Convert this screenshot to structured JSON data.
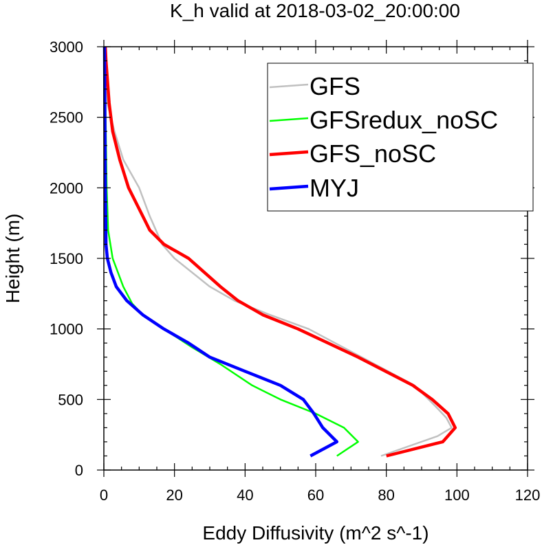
{
  "chart_data": {
    "type": "line",
    "title": "K_h valid at 2018-03-02_20:00:00",
    "xlabel": "Eddy Diffusivity (m^2 s^-1)",
    "ylabel": "Height (m)",
    "xlim": [
      0,
      120
    ],
    "ylim": [
      0,
      3000
    ],
    "xticks": [
      0,
      20,
      40,
      60,
      80,
      100,
      120
    ],
    "yticks": [
      0,
      500,
      1000,
      1500,
      2000,
      2500,
      3000
    ],
    "xtick_labels": [
      "0",
      "20",
      "40",
      "60",
      "80",
      "100",
      "120"
    ],
    "ytick_labels": [
      "0",
      "500",
      "1000",
      "1500",
      "2000",
      "2500",
      "3000"
    ],
    "legend_position": "top-right",
    "grid": false,
    "series": [
      {
        "name": "GFS",
        "color": "#c0c0c0",
        "line_width": "thin",
        "points": [
          [
            78.5,
            100
          ],
          [
            94.5,
            240
          ],
          [
            98.5,
            300
          ],
          [
            97,
            370
          ],
          [
            94,
            450
          ],
          [
            88,
            600
          ],
          [
            73,
            800
          ],
          [
            58,
            1000
          ],
          [
            47,
            1100
          ],
          [
            37,
            1200
          ],
          [
            30,
            1300
          ],
          [
            20,
            1500
          ],
          [
            16.5,
            1600
          ],
          [
            13,
            1800
          ],
          [
            10,
            2000
          ],
          [
            5.5,
            2200
          ],
          [
            3,
            2400
          ],
          [
            1,
            2600
          ],
          [
            0.5,
            2700
          ],
          [
            0.4,
            2800
          ],
          [
            0.3,
            3000
          ]
        ]
      },
      {
        "name": "GFSredux_noSC",
        "color": "#00ff00",
        "line_width": "thin",
        "points": [
          [
            66,
            100
          ],
          [
            72,
            200
          ],
          [
            68,
            300
          ],
          [
            60,
            400
          ],
          [
            50,
            500
          ],
          [
            42,
            600
          ],
          [
            33,
            750
          ],
          [
            25,
            870
          ],
          [
            17,
            1000
          ],
          [
            11,
            1100
          ],
          [
            8,
            1180
          ],
          [
            5.5,
            1300
          ],
          [
            2.5,
            1500
          ],
          [
            1.2,
            1700
          ],
          [
            0.8,
            2000
          ],
          [
            0.5,
            2500
          ],
          [
            0.3,
            3000
          ]
        ]
      },
      {
        "name": "GFS_noSC",
        "color": "#ff0000",
        "line_width": "thick",
        "points": [
          [
            80,
            100
          ],
          [
            96,
            200
          ],
          [
            99.5,
            300
          ],
          [
            97.5,
            400
          ],
          [
            93,
            500
          ],
          [
            87.5,
            600
          ],
          [
            72,
            800
          ],
          [
            55,
            1000
          ],
          [
            45,
            1100
          ],
          [
            38,
            1200
          ],
          [
            33,
            1300
          ],
          [
            24,
            1500
          ],
          [
            17,
            1600
          ],
          [
            13,
            1700
          ],
          [
            11,
            1800
          ],
          [
            7,
            2000
          ],
          [
            4.5,
            2200
          ],
          [
            2.5,
            2400
          ],
          [
            1.5,
            2600
          ],
          [
            0.6,
            2900
          ],
          [
            0.4,
            3000
          ]
        ]
      },
      {
        "name": "MYJ",
        "color": "#0000ff",
        "line_width": "thick",
        "points": [
          [
            58.5,
            100
          ],
          [
            66,
            200
          ],
          [
            62,
            300
          ],
          [
            59.5,
            400
          ],
          [
            56.5,
            500
          ],
          [
            50,
            600
          ],
          [
            40,
            700
          ],
          [
            30,
            800
          ],
          [
            24,
            900
          ],
          [
            17,
            1000
          ],
          [
            11,
            1100
          ],
          [
            6.5,
            1200
          ],
          [
            3.5,
            1300
          ],
          [
            2,
            1400
          ],
          [
            1,
            1500
          ],
          [
            0.6,
            1600
          ],
          [
            0.4,
            2000
          ],
          [
            0.3,
            2500
          ],
          [
            0.2,
            3000
          ]
        ]
      }
    ]
  }
}
